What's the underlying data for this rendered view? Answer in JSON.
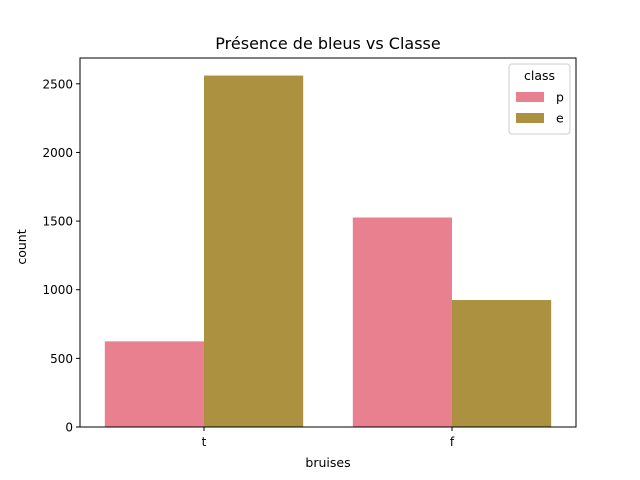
{
  "chart_data": {
    "type": "bar",
    "title": "Présence de bleus vs Classe",
    "xlabel": "bruises",
    "ylabel": "count",
    "categories": [
      "t",
      "f"
    ],
    "series": [
      {
        "name": "p",
        "color": "#e8808f",
        "values": [
          624,
          1526
        ]
      },
      {
        "name": "e",
        "color": "#ab9140",
        "values": [
          2560,
          925
        ]
      }
    ],
    "ylim": [
      0,
      2688
    ],
    "yticks": [
      0,
      500,
      1000,
      1500,
      2000,
      2500
    ],
    "grid": false,
    "legend": {
      "title": "class",
      "placement": "top-right"
    }
  }
}
